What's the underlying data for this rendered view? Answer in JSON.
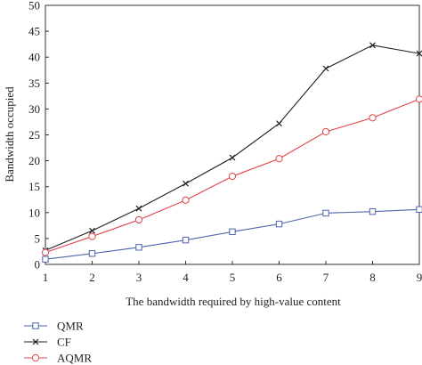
{
  "chart_data": {
    "type": "line",
    "xlabel": "The bandwidth required by high-value content",
    "ylabel": "Bandwidth occupied",
    "x": [
      1,
      2,
      3,
      4,
      5,
      6,
      7,
      8,
      9
    ],
    "xlim": [
      1,
      9
    ],
    "ylim": [
      0,
      50
    ],
    "xticks": [
      "1",
      "2",
      "3",
      "4",
      "5",
      "6",
      "7",
      "8",
      "9"
    ],
    "yticks": [
      "0",
      "5",
      "10",
      "15",
      "20",
      "25",
      "30",
      "35",
      "40",
      "45",
      "50"
    ],
    "grid": false,
    "legend_position": "bottom-left, below plot",
    "series": [
      {
        "name": "QMR",
        "color": "#4a66ad",
        "marker": "square",
        "values": [
          1.0,
          2.1,
          3.3,
          4.7,
          6.3,
          7.8,
          9.9,
          10.2,
          10.6
        ]
      },
      {
        "name": "CF",
        "color": "#222222",
        "marker": "x",
        "values": [
          2.7,
          6.5,
          10.8,
          15.6,
          20.6,
          27.2,
          37.8,
          42.3,
          40.7
        ]
      },
      {
        "name": "AQMR",
        "color": "#e0454b",
        "marker": "circle",
        "values": [
          2.3,
          5.4,
          8.6,
          12.4,
          17.0,
          20.4,
          25.6,
          28.3,
          31.9
        ]
      }
    ]
  }
}
